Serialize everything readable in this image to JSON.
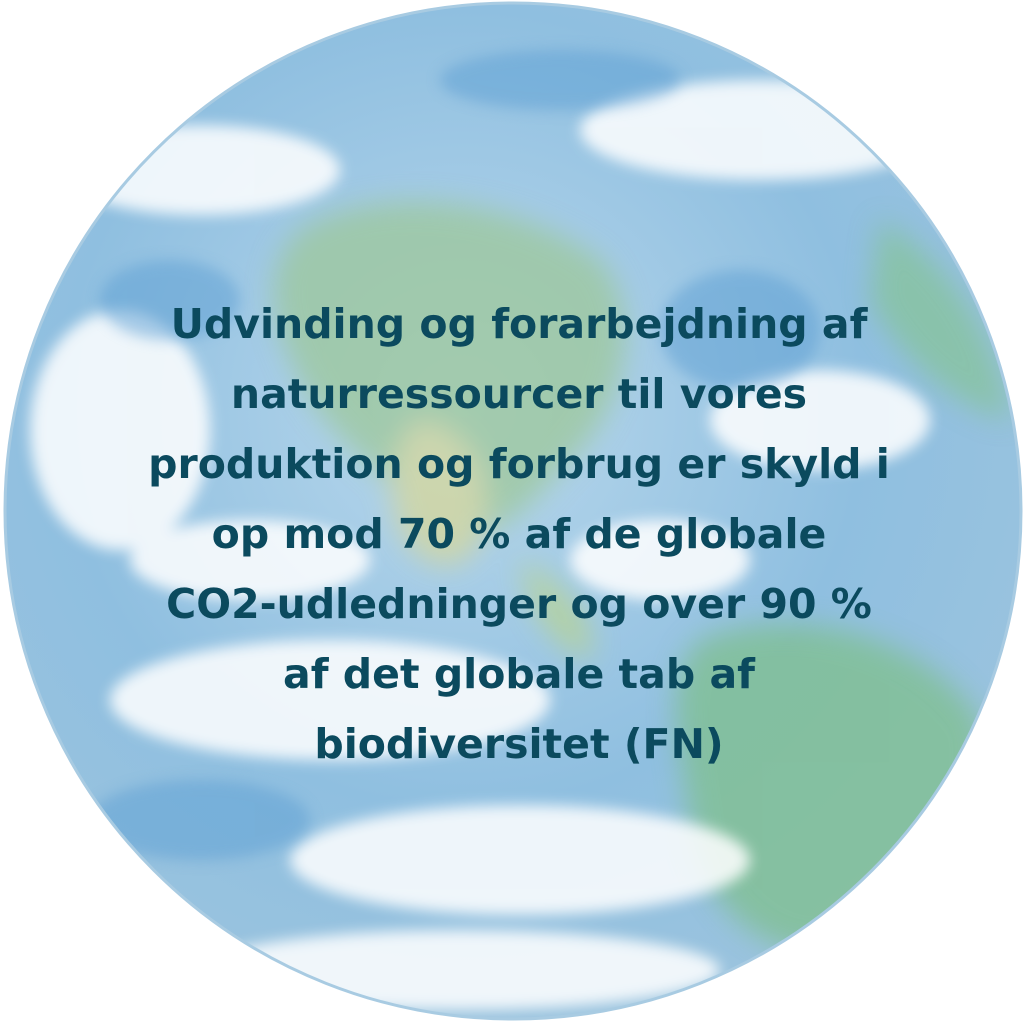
{
  "quote": {
    "lines": [
      "Udvinding og forarbejdning af",
      "naturressourcer til vores",
      "produktion og forbrug er skyld i",
      "op mod 70 % af de globale",
      "CO2-udledninger og over 90 %",
      "af det globale tab af",
      "biodiversitet (FN)"
    ]
  }
}
